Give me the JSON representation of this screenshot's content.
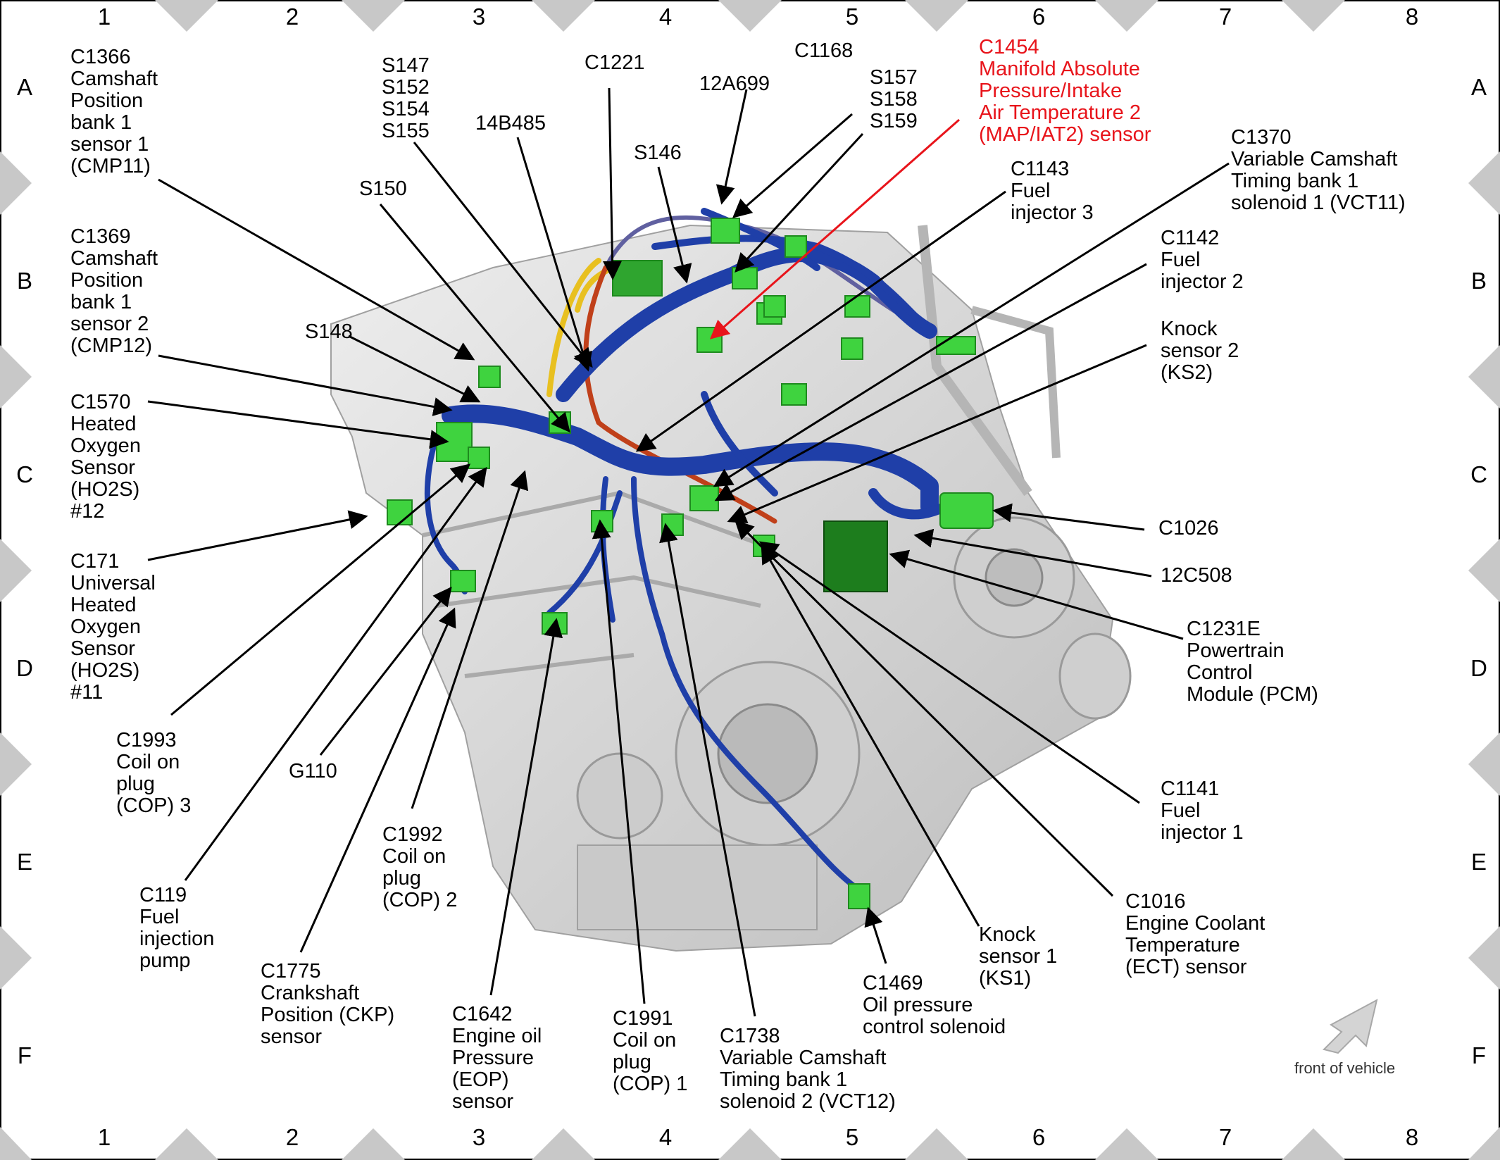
{
  "grid": {
    "columns": [
      "1",
      "2",
      "3",
      "4",
      "5",
      "6",
      "7",
      "8"
    ],
    "rows": [
      "A",
      "B",
      "C",
      "D",
      "E",
      "F"
    ]
  },
  "callouts": [
    {
      "id": "c1366",
      "text": "C1366\nCamshaft\nPosition\nbank 1\nsensor 1\n(CMP11)"
    },
    {
      "id": "c1369",
      "text": "C1369\nCamshaft\nPosition\nbank 1\nsensor 2\n(CMP12)"
    },
    {
      "id": "s148",
      "text": "S148"
    },
    {
      "id": "c1570",
      "text": "C1570\nHeated\nOxygen\nSensor\n(HO2S)\n#12"
    },
    {
      "id": "c171",
      "text": "C171\nUniversal\nHeated\nOxygen\nSensor\n(HO2S)\n#11"
    },
    {
      "id": "c1993",
      "text": "C1993\nCoil on\nplug\n(COP) 3"
    },
    {
      "id": "g110",
      "text": "G110"
    },
    {
      "id": "c119",
      "text": "C119\nFuel\ninjection\npump"
    },
    {
      "id": "c1775",
      "text": "C1775\nCrankshaft\nPosition (CKP)\nsensor"
    },
    {
      "id": "c1992",
      "text": "C1992\nCoil on\nplug\n(COP) 2"
    },
    {
      "id": "c1642",
      "text": "C1642\nEngine oil\nPressure\n(EOP)\nsensor"
    },
    {
      "id": "c1991",
      "text": "C1991\nCoil on\nplug\n(COP) 1"
    },
    {
      "id": "c1738",
      "text": "C1738\nVariable Camshaft\nTiming bank 1\nsolenoid 2 (VCT12)"
    },
    {
      "id": "c1469",
      "text": "C1469\nOil pressure\ncontrol solenoid"
    },
    {
      "id": "ks1",
      "text": "Knock\nsensor 1\n(KS1)"
    },
    {
      "id": "c1016",
      "text": "C1016\nEngine Coolant\nTemperature\n(ECT) sensor"
    },
    {
      "id": "c1141",
      "text": "C1141\nFuel\ninjector 1"
    },
    {
      "id": "c1231e",
      "text": "C1231E\nPowertrain\nControl\nModule (PCM)"
    },
    {
      "id": "12c508",
      "text": "12C508"
    },
    {
      "id": "c1026",
      "text": "C1026"
    },
    {
      "id": "ks2",
      "text": "Knock\nsensor 2\n(KS2)"
    },
    {
      "id": "c1142",
      "text": "C1142\nFuel\ninjector 2"
    },
    {
      "id": "c1143",
      "text": "C1143\nFuel\ninjector 3"
    },
    {
      "id": "c1370",
      "text": "C1370\nVariable Camshaft\nTiming bank 1\nsolenoid 1 (VCT11)"
    },
    {
      "id": "c1454",
      "text": "C1454\nManifold Absolute\nPressure/Intake\nAir Temperature 2\n(MAP/IAT2) sensor"
    },
    {
      "id": "s157",
      "text": "S157\nS158\nS159"
    },
    {
      "id": "c1168",
      "text": "C1168"
    },
    {
      "id": "12a699",
      "text": "12A699"
    },
    {
      "id": "c1221",
      "text": "C1221"
    },
    {
      "id": "s146",
      "text": "S146"
    },
    {
      "id": "14b485",
      "text": "14B485"
    },
    {
      "id": "s147",
      "text": "S147\nS152\nS154\nS155"
    },
    {
      "id": "s150",
      "text": "S150"
    }
  ],
  "front_label": "front of vehicle",
  "colors": {
    "harness_blue": "#1f3fa8",
    "connector_green": "#3fd33f",
    "pcm_green": "#1d7d1d",
    "highlight_red": "#e8141b",
    "engine_gray": "#d9d9d9"
  }
}
